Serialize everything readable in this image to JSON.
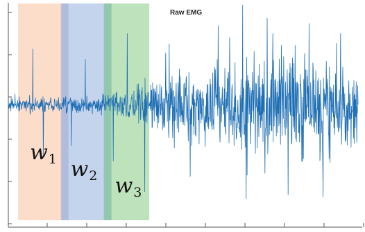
{
  "chart_data": {
    "type": "line",
    "title": "Raw EMG",
    "xlabel": "",
    "ylabel": "",
    "x_range": [
      0,
      100
    ],
    "y_range": [
      -1,
      1
    ],
    "grid": false,
    "series": [
      {
        "color": "#1f6fb4",
        "envelope": [
          {
            "x": 0,
            "amp": 0.1
          },
          {
            "x": 14,
            "amp": 0.12
          },
          {
            "x": 27,
            "amp": 0.13
          },
          {
            "x": 33,
            "amp": 0.22
          },
          {
            "x": 38,
            "amp": 0.32
          },
          {
            "x": 42,
            "amp": 0.4
          },
          {
            "x": 55,
            "amp": 0.55
          },
          {
            "x": 70,
            "amp": 0.68
          },
          {
            "x": 85,
            "amp": 0.72
          },
          {
            "x": 100,
            "amp": 0.6
          }
        ],
        "spikes": [
          {
            "x": 7,
            "y": 0.55
          },
          {
            "x": 10,
            "y": -0.5
          },
          {
            "x": 18,
            "y": -0.4
          },
          {
            "x": 22,
            "y": 0.45
          },
          {
            "x": 30,
            "y": -0.55
          },
          {
            "x": 34,
            "y": 0.7
          },
          {
            "x": 39,
            "y": -0.85
          },
          {
            "x": 46,
            "y": 0.6
          },
          {
            "x": 52,
            "y": -0.7
          },
          {
            "x": 60,
            "y": 0.78
          },
          {
            "x": 67,
            "y": 0.98
          },
          {
            "x": 68,
            "y": -0.92
          },
          {
            "x": 74,
            "y": 0.85
          },
          {
            "x": 80,
            "y": -0.88
          },
          {
            "x": 86,
            "y": 0.8
          },
          {
            "x": 90,
            "y": -0.9
          },
          {
            "x": 95,
            "y": 0.7
          }
        ]
      }
    ],
    "windows": [
      {
        "label": "w",
        "subscript": "1",
        "x_start": 2.8,
        "x_end": 15.2,
        "color": "#f6b38a"
      },
      {
        "label": "w",
        "subscript": "2",
        "x_start": 15.2,
        "x_end": 27.5,
        "color": "#7f9fd6"
      },
      {
        "label": "w",
        "subscript": "3",
        "x_start": 27.5,
        "x_end": 40.3,
        "color": "#6ec26a"
      }
    ]
  }
}
